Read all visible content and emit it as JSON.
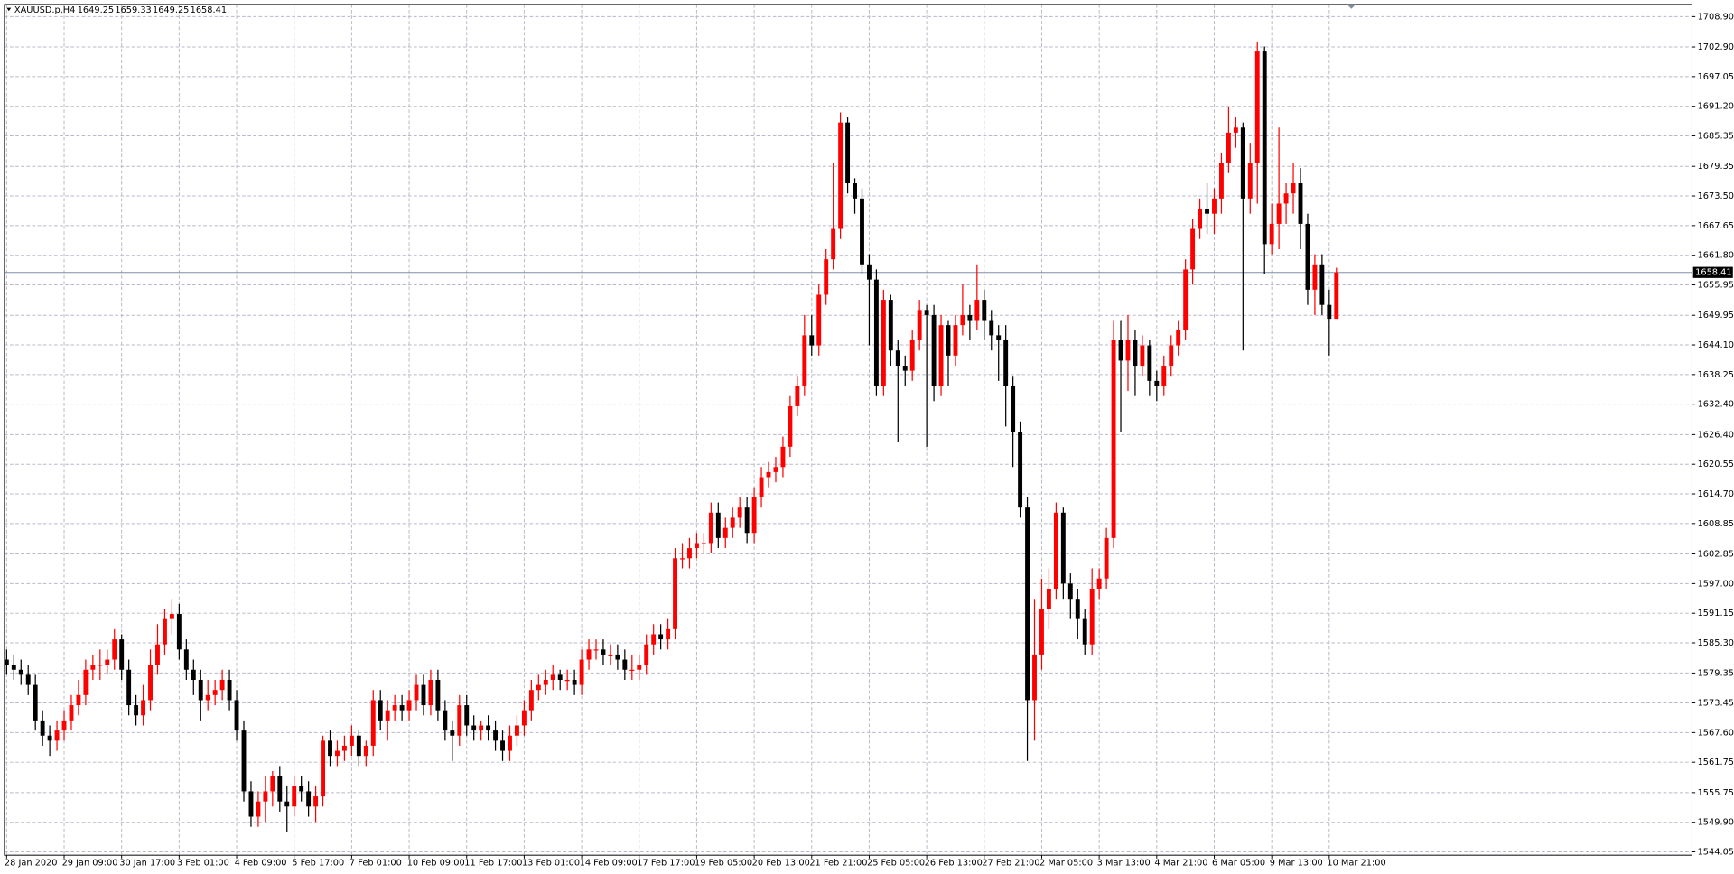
{
  "chart_data": {
    "type": "candlestick",
    "symbol": "XAUUSD.p,H4",
    "categories": [
      "28 Jan 2020",
      null,
      null,
      null,
      null,
      null,
      null,
      null,
      "29 Jan 09:00",
      null,
      null,
      null,
      null,
      null,
      null,
      null,
      "30 Jan 17:00",
      null,
      null,
      null,
      null,
      null,
      null,
      null,
      "3 Feb 01:00",
      null,
      null,
      null,
      null,
      null,
      null,
      null,
      "4 Feb 09:00",
      null,
      null,
      null,
      null,
      null,
      null,
      null,
      "5 Feb 17:00",
      null,
      null,
      null,
      null,
      null,
      null,
      null,
      "7 Feb 01:00",
      null,
      null,
      null,
      null,
      null,
      null,
      null,
      "10 Feb 09:00",
      null,
      null,
      null,
      null,
      null,
      null,
      null,
      "11 Feb 17:00",
      null,
      null,
      null,
      null,
      null,
      null,
      null,
      "13 Feb 01:00",
      null,
      null,
      null,
      null,
      null,
      null,
      null,
      "14 Feb 09:00",
      null,
      null,
      null,
      null,
      null,
      null,
      null,
      "17 Feb 17:00",
      null,
      null,
      null,
      null,
      null,
      null,
      null,
      "19 Feb 05:00",
      null,
      null,
      null,
      null,
      null,
      null,
      null,
      "20 Feb 13:00",
      null,
      null,
      null,
      null,
      null,
      null,
      null,
      "21 Feb 21:00",
      null,
      null,
      null,
      null,
      null,
      null,
      null,
      "25 Feb 05:00",
      null,
      null,
      null,
      null,
      null,
      null,
      null,
      "26 Feb 13:00",
      null,
      null,
      null,
      null,
      null,
      null,
      null,
      "27 Feb 21:00",
      null,
      null,
      null,
      null,
      null,
      null,
      null,
      "2 Mar 05:00",
      null,
      null,
      null,
      null,
      null,
      null,
      null,
      "3 Mar 13:00",
      null,
      null,
      null,
      null,
      null,
      null,
      null,
      "4 Mar 21:00",
      null,
      null,
      null,
      null,
      null,
      null,
      null,
      "6 Mar 05:00",
      null,
      null,
      null,
      null,
      null,
      null,
      null,
      "9 Mar 13:00",
      null,
      null,
      null,
      null,
      null,
      null,
      null,
      "10 Mar 21:00",
      null
    ],
    "open": [
      1582,
      1581,
      1580,
      1579,
      1577,
      1570,
      1567,
      1566,
      1568,
      1570,
      1573,
      1575,
      1580,
      1581,
      1581,
      1582,
      1586,
      1580,
      1573,
      1571,
      1574,
      1581,
      1585,
      1590,
      1591,
      1584,
      1580,
      1578,
      1574,
      1575,
      1576,
      1578,
      1574,
      1568,
      1556,
      1551,
      1554,
      1556,
      1559,
      1554,
      1553,
      1557,
      1556,
      1553,
      1555,
      1566,
      1563,
      1564,
      1565,
      1567,
      1563,
      1565,
      1574,
      1570,
      1572,
      1573,
      1572,
      1574,
      1577,
      1573,
      1578,
      1572,
      1568,
      1567,
      1573,
      1569,
      1568,
      1569,
      1568,
      1566,
      1564,
      1567,
      1569,
      1572,
      1576,
      1577,
      1578,
      1579,
      1578,
      1578,
      1577,
      1582,
      1584,
      1584,
      1583,
      1583,
      1582,
      1580,
      1580,
      1581,
      1585,
      1587,
      1586,
      1588,
      1602,
      1602,
      1604,
      1605,
      1605,
      1611,
      1606,
      1608,
      1610,
      1612,
      1607,
      1614,
      1618,
      1619,
      1620,
      1624,
      1632,
      1636,
      1646,
      1644,
      1654,
      1661,
      1667,
      1688,
      1676,
      1673,
      1660,
      1657,
      1636,
      1653,
      1643,
      1640,
      1639,
      1645,
      1651,
      1650,
      1636,
      1648,
      1642,
      1648,
      1650,
      1649,
      1653,
      1649,
      1646,
      1645,
      1636,
      1627,
      1612,
      1574,
      1583,
      1592,
      1596,
      1611,
      1597,
      1594,
      1590,
      1585,
      1596,
      1598,
      1606,
      1645,
      1641,
      1645,
      1640,
      1644,
      1637,
      1636,
      1640,
      1644,
      1647,
      1659,
      1667,
      1671,
      1670,
      1673,
      1680,
      1686,
      1687,
      1673,
      1680,
      1702,
      1664,
      1668,
      1672,
      1674,
      1676,
      1668,
      1655,
      1660,
      1652,
      1649.25
    ],
    "high": [
      1584,
      1583,
      1582,
      1581,
      1579,
      1572,
      1569,
      1570,
      1572,
      1575,
      1578,
      1582,
      1583,
      1584,
      1584,
      1588,
      1587,
      1582,
      1575,
      1577,
      1584,
      1589,
      1592,
      1594,
      1593,
      1586,
      1582,
      1580,
      1578,
      1578,
      1580,
      1580,
      1576,
      1570,
      1558,
      1556,
      1559,
      1560,
      1561,
      1557,
      1559,
      1559,
      1558,
      1557,
      1567,
      1568,
      1566,
      1567,
      1569,
      1568,
      1566,
      1576,
      1576,
      1574,
      1575,
      1575,
      1576,
      1579,
      1579,
      1580,
      1580,
      1574,
      1570,
      1575,
      1575,
      1571,
      1570,
      1571,
      1570,
      1568,
      1569,
      1571,
      1574,
      1578,
      1579,
      1580,
      1581,
      1580,
      1580,
      1580,
      1584,
      1586,
      1586,
      1586,
      1585,
      1585,
      1584,
      1583,
      1583,
      1587,
      1589,
      1589,
      1590,
      1604,
      1605,
      1606,
      1607,
      1607,
      1613,
      1613,
      1610,
      1612,
      1614,
      1614,
      1616,
      1620,
      1621,
      1622,
      1626,
      1634,
      1638,
      1650,
      1650,
      1656,
      1663,
      1680,
      1690,
      1689,
      1677,
      1675,
      1662,
      1659,
      1655,
      1654,
      1645,
      1642,
      1647,
      1653,
      1652,
      1652,
      1650,
      1649,
      1650,
      1656,
      1652,
      1660,
      1655,
      1651,
      1648,
      1648,
      1638,
      1629,
      1614,
      1594,
      1598,
      1600,
      1613,
      1612,
      1599,
      1596,
      1592,
      1600,
      1600,
      1608,
      1649,
      1649,
      1650,
      1647,
      1646,
      1645,
      1639,
      1642,
      1646,
      1649,
      1661,
      1669,
      1673,
      1676,
      1675,
      1682,
      1691,
      1689,
      1688,
      1684,
      1704,
      1703,
      1672,
      1687,
      1676,
      1680,
      1679,
      1670,
      1662,
      1662,
      1655,
      1659.33
    ],
    "low": [
      1579,
      1578,
      1577,
      1575,
      1568,
      1565,
      1563,
      1564,
      1566,
      1568,
      1571,
      1573,
      1578,
      1578,
      1579,
      1580,
      1578,
      1571,
      1569,
      1569,
      1572,
      1579,
      1583,
      1587,
      1582,
      1578,
      1575,
      1570,
      1572,
      1573,
      1574,
      1572,
      1566,
      1554,
      1549,
      1549,
      1550,
      1553,
      1552,
      1548,
      1551,
      1554,
      1551,
      1550,
      1553,
      1561,
      1561,
      1562,
      1563,
      1561,
      1561,
      1563,
      1568,
      1566,
      1570,
      1570,
      1570,
      1572,
      1571,
      1571,
      1570,
      1566,
      1562,
      1565,
      1567,
      1566,
      1566,
      1566,
      1564,
      1562,
      1562,
      1565,
      1567,
      1570,
      1574,
      1575,
      1576,
      1576,
      1576,
      1575,
      1575,
      1580,
      1582,
      1581,
      1581,
      1580,
      1578,
      1578,
      1578,
      1579,
      1583,
      1584,
      1584,
      1586,
      1600,
      1600,
      1602,
      1603,
      1603,
      1604,
      1604,
      1606,
      1608,
      1605,
      1605,
      1612,
      1616,
      1617,
      1618,
      1622,
      1630,
      1634,
      1642,
      1642,
      1652,
      1659,
      1665,
      1674,
      1670,
      1658,
      1644,
      1634,
      1634,
      1640,
      1625,
      1636,
      1637,
      1643,
      1624,
      1633,
      1634,
      1636,
      1640,
      1646,
      1645,
      1647,
      1645,
      1643,
      1637,
      1628,
      1620,
      1610,
      1562,
      1566,
      1580,
      1588,
      1594,
      1594,
      1590,
      1586,
      1583,
      1583,
      1594,
      1596,
      1604,
      1627,
      1635,
      1634,
      1638,
      1634,
      1633,
      1634,
      1638,
      1642,
      1645,
      1656,
      1665,
      1666,
      1666,
      1670,
      1678,
      1683,
      1643,
      1670,
      1672,
      1658,
      1662,
      1663,
      1668,
      1670,
      1663,
      1652,
      1650,
      1650,
      1642,
      1649.25
    ],
    "close": [
      1581,
      1580,
      1579,
      1577,
      1570,
      1567,
      1566,
      1568,
      1570,
      1573,
      1575,
      1580,
      1581,
      1581,
      1582,
      1586,
      1580,
      1573,
      1571,
      1574,
      1581,
      1585,
      1590,
      1591,
      1584,
      1580,
      1578,
      1574,
      1575,
      1576,
      1578,
      1574,
      1568,
      1556,
      1551,
      1554,
      1556,
      1559,
      1554,
      1553,
      1557,
      1556,
      1553,
      1555,
      1566,
      1563,
      1564,
      1565,
      1567,
      1563,
      1565,
      1574,
      1570,
      1572,
      1573,
      1572,
      1574,
      1577,
      1573,
      1578,
      1572,
      1568,
      1567,
      1573,
      1569,
      1568,
      1569,
      1568,
      1566,
      1564,
      1567,
      1569,
      1572,
      1576,
      1577,
      1578,
      1579,
      1578,
      1578,
      1577,
      1582,
      1584,
      1584,
      1583,
      1583,
      1582,
      1580,
      1580,
      1581,
      1585,
      1587,
      1586,
      1588,
      1602,
      1602,
      1604,
      1605,
      1605,
      1611,
      1606,
      1608,
      1610,
      1612,
      1607,
      1614,
      1618,
      1619,
      1620,
      1624,
      1632,
      1636,
      1646,
      1644,
      1654,
      1661,
      1667,
      1688,
      1676,
      1673,
      1660,
      1657,
      1636,
      1653,
      1643,
      1640,
      1639,
      1645,
      1651,
      1650,
      1636,
      1648,
      1642,
      1648,
      1650,
      1649,
      1653,
      1649,
      1646,
      1645,
      1636,
      1627,
      1612,
      1574,
      1583,
      1592,
      1596,
      1611,
      1597,
      1594,
      1590,
      1585,
      1596,
      1598,
      1606,
      1645,
      1641,
      1645,
      1640,
      1644,
      1637,
      1636,
      1640,
      1644,
      1647,
      1659,
      1667,
      1671,
      1670,
      1673,
      1680,
      1686,
      1687,
      1673,
      1680,
      1702,
      1664,
      1668,
      1672,
      1674,
      1676,
      1668,
      1655,
      1660,
      1652,
      1649.25,
      1658.41
    ],
    "up_color": "#ff0000",
    "down_color": "#000000",
    "ylim": [
      1543.4,
      1711.3
    ],
    "yticks": [
      {
        "value": 1708.9,
        "label": "1708.90"
      },
      {
        "value": 1702.9,
        "label": "1702.90"
      },
      {
        "value": 1697.05,
        "label": "1697.05"
      },
      {
        "value": 1691.2,
        "label": "1691.20"
      },
      {
        "value": 1685.35,
        "label": "1685.35"
      },
      {
        "value": 1679.35,
        "label": "1679.35"
      },
      {
        "value": 1673.5,
        "label": "1673.50"
      },
      {
        "value": 1667.65,
        "label": "1667.65"
      },
      {
        "value": 1661.8,
        "label": "1661.80"
      },
      {
        "value": 1655.95,
        "label": "1655.95"
      },
      {
        "value": 1649.95,
        "label": "1649.95"
      },
      {
        "value": 1644.1,
        "label": "1644.10"
      },
      {
        "value": 1638.25,
        "label": "1638.25"
      },
      {
        "value": 1632.4,
        "label": "1632.40"
      },
      {
        "value": 1626.4,
        "label": "1626.40"
      },
      {
        "value": 1620.55,
        "label": "1620.55"
      },
      {
        "value": 1614.7,
        "label": "1614.70"
      },
      {
        "value": 1608.85,
        "label": "1608.85"
      },
      {
        "value": 1602.85,
        "label": "1602.85"
      },
      {
        "value": 1597,
        "label": "1597.00"
      },
      {
        "value": 1591.15,
        "label": "1591.15"
      },
      {
        "value": 1585.3,
        "label": "1585.30"
      },
      {
        "value": 1579.35,
        "label": "1579.35"
      },
      {
        "value": 1573.45,
        "label": "1573.45"
      },
      {
        "value": 1567.6,
        "label": "1567.60"
      },
      {
        "value": 1561.75,
        "label": "1561.75"
      },
      {
        "value": 1555.75,
        "label": "1555.75"
      },
      {
        "value": 1549.9,
        "label": "1549.90"
      },
      {
        "value": 1544.05,
        "label": "1544.05"
      }
    ],
    "grid": true
  }
}
